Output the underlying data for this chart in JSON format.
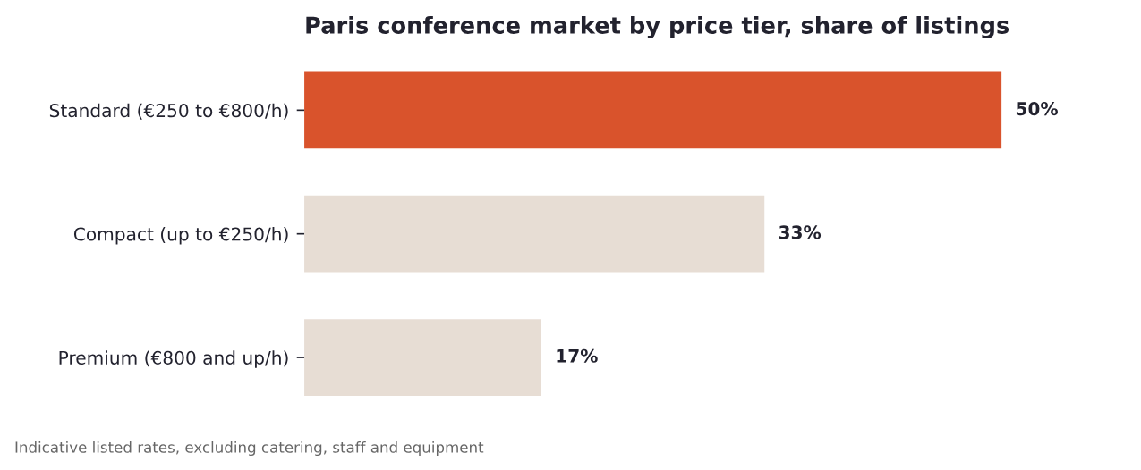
{
  "chart_data": {
    "type": "bar",
    "orientation": "horizontal",
    "title": "Paris conference market by price tier, share of listings",
    "categories": [
      "Standard (€250 to €800/h)",
      "Compact (up to €250/h)",
      "Premium (€800 and up/h)"
    ],
    "values": [
      50,
      33,
      17
    ],
    "colors": [
      "#d9532c",
      "#e7ddd4",
      "#e7ddd4"
    ],
    "value_labels": [
      "50%",
      "33%",
      "17%"
    ],
    "tick_labels": "y",
    "grid": false,
    "legend": false,
    "annotations": [
      "Indicative listed rates, excluding catering, staff and equipment"
    ]
  }
}
